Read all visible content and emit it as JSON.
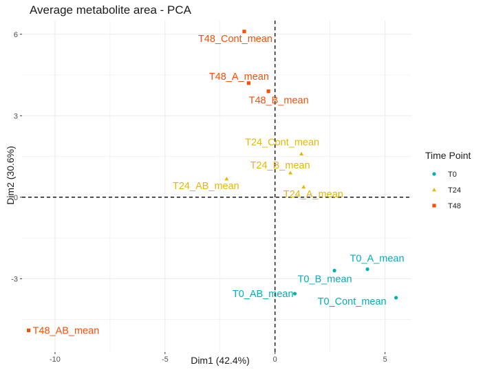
{
  "chart_data": {
    "type": "scatter",
    "title": "Average metabolite area - PCA",
    "xlabel": "Dim1 (42.4%)",
    "ylabel": "Dim2 (30.6%)",
    "xlim": [
      -11.5,
      6.2
    ],
    "ylim": [
      -5.7,
      6.5
    ],
    "x_ticks": [
      -10,
      -5,
      0,
      5
    ],
    "x_tick_labels": [
      "-10",
      "-5",
      "0",
      "5"
    ],
    "y_ticks": [
      -3,
      0,
      3,
      6
    ],
    "y_tick_labels": [
      "-3",
      "0",
      "3",
      "6"
    ],
    "grid": true,
    "reference_lines": {
      "x": 0,
      "y": 0,
      "style": "dashed"
    },
    "legend": {
      "title": "Time Point",
      "placement": "right",
      "entries": [
        {
          "name": "T0",
          "color": "#00AFBB",
          "shape": "circle"
        },
        {
          "name": "T24",
          "color": "#E7B800",
          "shape": "triangle"
        },
        {
          "name": "T48",
          "color": "#FC4E07",
          "shape": "square"
        }
      ]
    },
    "series": [
      {
        "name": "T0",
        "color": "#00AFBB",
        "shape": "circle",
        "points": [
          {
            "label": "T0_A_mean",
            "x": 4.2,
            "y": -2.65
          },
          {
            "label": "T0_B_mean",
            "x": 2.7,
            "y": -2.7
          },
          {
            "label": "T0_AB_mean",
            "x": 0.9,
            "y": -3.55
          },
          {
            "label": "T0_Cont_mean",
            "x": 5.5,
            "y": -3.7
          }
        ]
      },
      {
        "name": "T24",
        "color": "#E7B800",
        "shape": "triangle",
        "points": [
          {
            "label": "T24_Cont_mean",
            "x": 1.2,
            "y": 1.6
          },
          {
            "label": "T24_B_mean",
            "x": 0.7,
            "y": 0.9
          },
          {
            "label": "T24_AB_mean",
            "x": -2.2,
            "y": 0.68
          },
          {
            "label": "T24_A_mean",
            "x": 1.3,
            "y": 0.38
          }
        ]
      },
      {
        "name": "T48",
        "color": "#FC4E07",
        "shape": "square",
        "points": [
          {
            "label": "T48_Cont_mean",
            "x": -1.4,
            "y": 6.1
          },
          {
            "label": "T48_A_mean",
            "x": -1.2,
            "y": 4.2
          },
          {
            "label": "T48_B_mean",
            "x": -0.3,
            "y": 3.9
          },
          {
            "label": "T48_AB_mean",
            "x": -11.2,
            "y": -4.9
          }
        ]
      }
    ]
  }
}
